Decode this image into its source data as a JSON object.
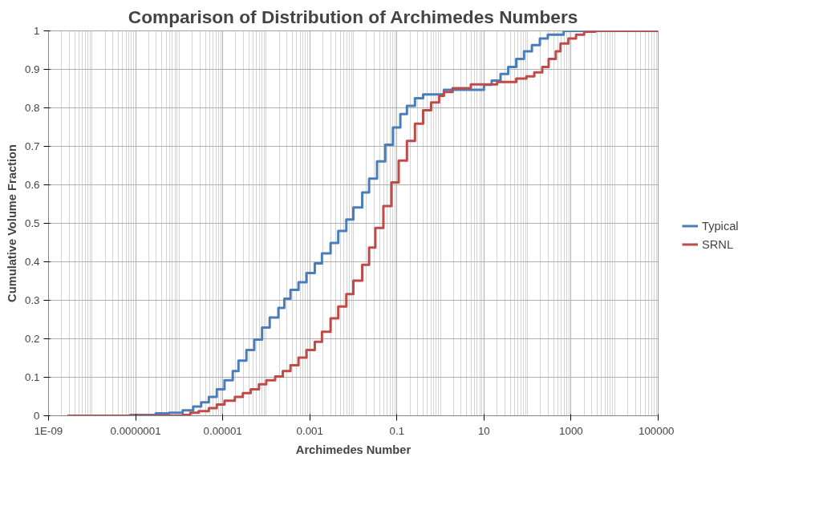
{
  "chart_data": {
    "type": "step",
    "title": "Comparison of Distribution of Archimedes Numbers",
    "xlabel": "Archimedes Number",
    "ylabel": "Cumulative Volume Fraction",
    "log": "x",
    "grid": true,
    "legend": "right",
    "line_style": "solid",
    "marker": "none",
    "xlim": [
      1e-09,
      100000
    ],
    "xticks": [
      {
        "value": 1e-09,
        "label": "1E-09"
      },
      {
        "value": 1e-07,
        "label": "0.0000001"
      },
      {
        "value": 1e-05,
        "label": "0.00001"
      },
      {
        "value": 0.001,
        "label": "0.001"
      },
      {
        "value": 0.1,
        "label": "0.1"
      },
      {
        "value": 10,
        "label": "10"
      },
      {
        "value": 1000,
        "label": "1000"
      },
      {
        "value": 100000,
        "label": "100000"
      }
    ],
    "ylim": [
      0,
      1
    ],
    "yticks": [
      0,
      0.1,
      0.2,
      0.3,
      0.4,
      0.5,
      0.6,
      0.7,
      0.8,
      0.9,
      1
    ],
    "series": [
      {
        "name": "Typical",
        "color": "#4a7ebb",
        "x": [
          7.2e-08,
          2.9e-07,
          5.9e-07,
          1.2e-06,
          2.1e-06,
          3.2e-06,
          4.8e-06,
          7.3e-06,
          1.1e-05,
          1.7e-05,
          2.3e-05,
          3.5e-05,
          5.3e-05,
          8e-05,
          0.00012,
          0.00019,
          0.00026,
          0.00036,
          0.00055,
          0.00084,
          0.0013,
          0.0019,
          0.003,
          0.0045,
          0.0069,
          0.01,
          0.016,
          0.023,
          0.035,
          0.054,
          0.081,
          0.12,
          0.17,
          0.26,
          0.4,
          1.2,
          10,
          15,
          24,
          36,
          55,
          83,
          126,
          192,
          292,
          677,
          100000
        ],
        "values": [
          0.002,
          0.006,
          0.008,
          0.014,
          0.024,
          0.035,
          0.049,
          0.069,
          0.092,
          0.116,
          0.143,
          0.171,
          0.198,
          0.229,
          0.255,
          0.28,
          0.304,
          0.327,
          0.347,
          0.371,
          0.396,
          0.422,
          0.449,
          0.48,
          0.51,
          0.541,
          0.58,
          0.616,
          0.661,
          0.704,
          0.749,
          0.784,
          0.805,
          0.825,
          0.835,
          0.847,
          0.86,
          0.871,
          0.888,
          0.906,
          0.927,
          0.947,
          0.963,
          0.98,
          0.99,
          1.0,
          1.0
        ]
      },
      {
        "name": "SRNL",
        "color": "#be4b48",
        "x": [
          2.7e-09,
          1.2e-06,
          1.8e-06,
          2.8e-06,
          4.8e-06,
          7.3e-06,
          1.1e-05,
          1.9e-05,
          2.9e-05,
          4.4e-05,
          6.8e-05,
          0.0001,
          0.00016,
          0.00024,
          0.00036,
          0.00055,
          0.00084,
          0.0013,
          0.0019,
          0.003,
          0.0045,
          0.0069,
          0.01,
          0.016,
          0.023,
          0.032,
          0.049,
          0.075,
          0.11,
          0.17,
          0.26,
          0.4,
          0.61,
          0.93,
          1.2,
          1.9,
          5.0,
          20,
          55,
          94,
          143,
          218,
          305,
          445,
          572,
          870,
          1300,
          2000,
          3600,
          100000
        ],
        "values": [
          0,
          0.002,
          0.008,
          0.012,
          0.02,
          0.029,
          0.039,
          0.049,
          0.059,
          0.069,
          0.082,
          0.092,
          0.102,
          0.116,
          0.131,
          0.151,
          0.171,
          0.192,
          0.218,
          0.253,
          0.284,
          0.316,
          0.351,
          0.392,
          0.437,
          0.488,
          0.545,
          0.606,
          0.663,
          0.714,
          0.759,
          0.794,
          0.814,
          0.831,
          0.841,
          0.851,
          0.861,
          0.867,
          0.876,
          0.882,
          0.892,
          0.906,
          0.927,
          0.947,
          0.967,
          0.98,
          0.99,
          0.998,
          1.0,
          1.0
        ]
      }
    ]
  }
}
